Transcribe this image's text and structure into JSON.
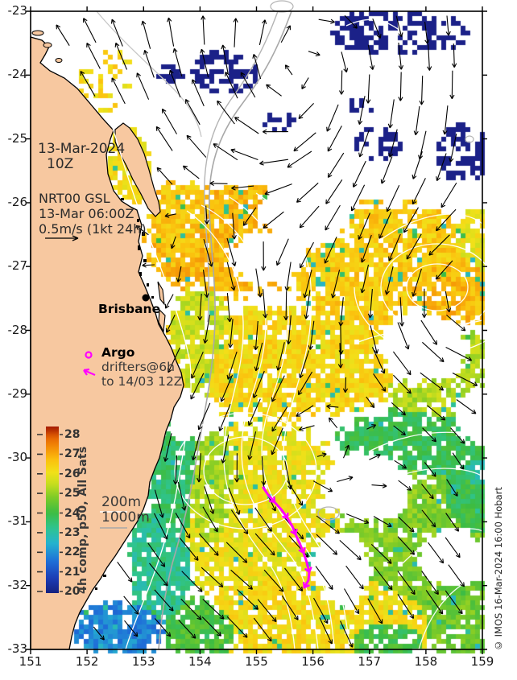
{
  "map": {
    "x_ticks": [
      "151",
      "152",
      "153",
      "154",
      "155",
      "156",
      "157",
      "158",
      "159"
    ],
    "y_ticks": [
      "-23",
      "-24",
      "-25",
      "-26",
      "-27",
      "-28",
      "-29",
      "-30",
      "-31",
      "-32",
      "-33"
    ],
    "timestamp": {
      "line1": "13-Mar-2024",
      "line2": "10Z"
    },
    "model": {
      "line1": "NRT00 GSL",
      "line2": "13-Mar 06:00Z",
      "line3": "0.5m/s (1kt 24h)"
    },
    "city": {
      "name": "Brisbane"
    },
    "legend": {
      "argo": "Argo",
      "drifters_line1": "drifters@6h",
      "drifters_line2": "to 14/03 12Z"
    },
    "isobaths": {
      "shallow": "200m",
      "deep": "1000m"
    },
    "credit": "© IMOS 16-Mar-2024 16:00 Hobart"
  },
  "colorbar": {
    "label": "4h comp, p50, All Sats",
    "tick_labels": [
      "28",
      "27",
      "26",
      "25",
      "24",
      "23",
      "22",
      "21",
      "20"
    ],
    "min": 20,
    "max": 28,
    "palette": [
      [
        19.8,
        "#141f7b"
      ],
      [
        20.6,
        "#1c3cb4"
      ],
      [
        21.5,
        "#1f6fd8"
      ],
      [
        22.4,
        "#25b2cf"
      ],
      [
        23.2,
        "#2ec490"
      ],
      [
        24.0,
        "#3dbc42"
      ],
      [
        24.8,
        "#7ecb27"
      ],
      [
        25.5,
        "#c8de1d"
      ],
      [
        26.1,
        "#f2e019"
      ],
      [
        26.7,
        "#fbc20e"
      ],
      [
        27.3,
        "#f59306"
      ],
      [
        27.9,
        "#e66302"
      ],
      [
        28.4,
        "#a51b01"
      ]
    ]
  },
  "drifter_track": {
    "color": "#ff00ff",
    "points": [
      [
        327,
        606
      ],
      [
        333,
        615
      ],
      [
        341,
        624
      ],
      [
        350,
        634
      ],
      [
        357,
        644
      ],
      [
        363,
        654
      ],
      [
        367,
        664
      ],
      [
        372,
        675
      ],
      [
        377,
        687
      ],
      [
        381,
        699
      ],
      [
        384,
        711
      ],
      [
        383,
        721
      ],
      [
        378,
        730
      ]
    ]
  },
  "colors": {
    "land": "#f7c8a0",
    "cloud": "#1b2188",
    "vector": "#000000",
    "ssh_contour": "#ffffff",
    "isobath_1000": "#a8a8a8",
    "isobath_200": "#e8e8e8",
    "drifter": "#ff00ff"
  }
}
